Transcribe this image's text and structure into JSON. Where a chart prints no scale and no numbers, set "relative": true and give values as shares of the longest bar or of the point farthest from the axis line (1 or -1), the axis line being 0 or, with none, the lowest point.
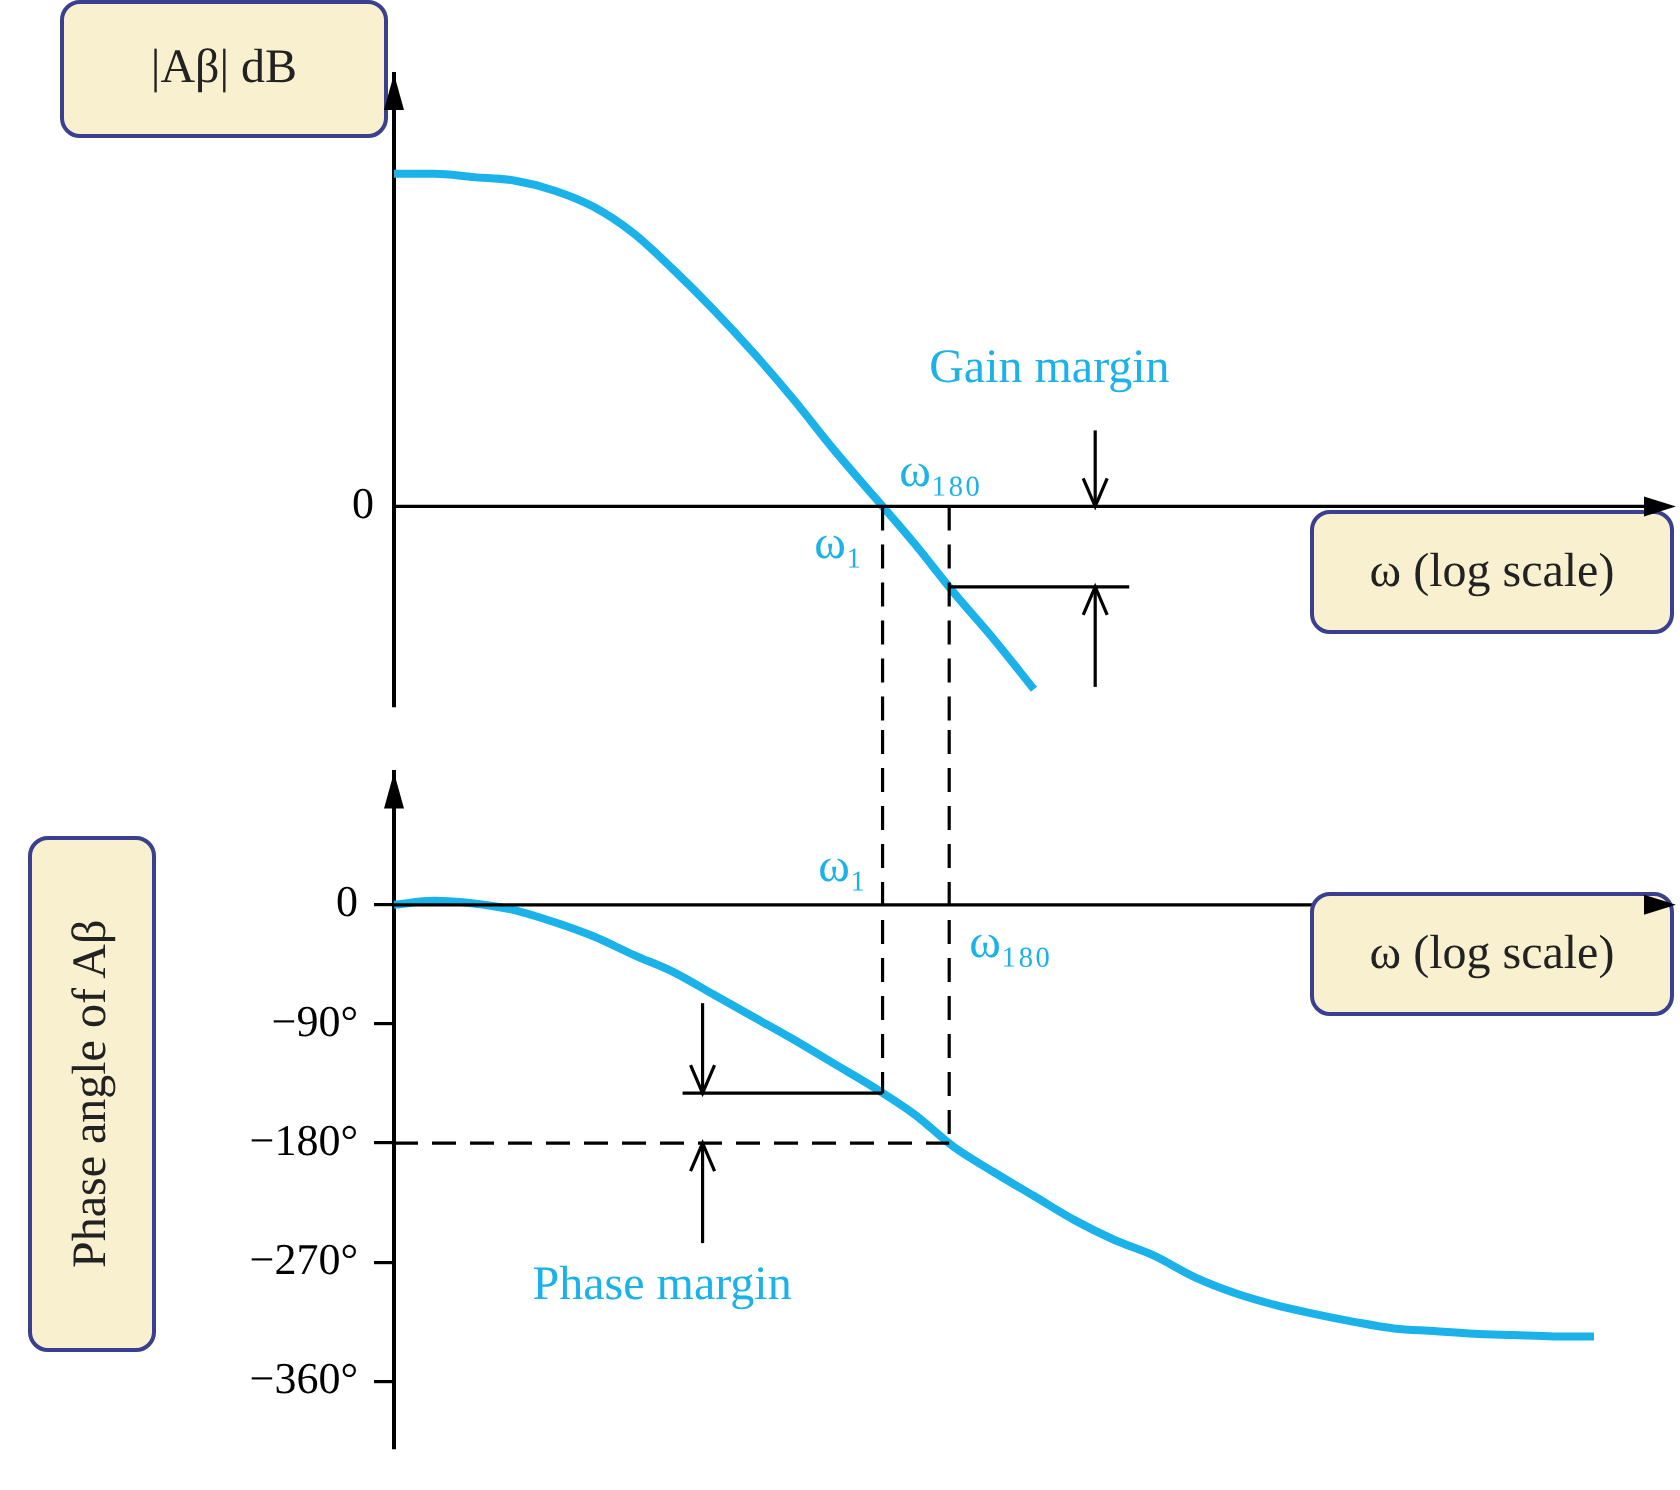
{
  "chart_data": [
    {
      "type": "line",
      "relative": true,
      "ylabel": "|Aβ|   dB",
      "xlabel": "ω (log scale)",
      "ref_lines": [
        {
          "axis": "y",
          "value": 0,
          "label": "0",
          "color": "#000000"
        }
      ],
      "categories": [
        null,
        null,
        null,
        null,
        null,
        null,
        null,
        null,
        null,
        null,
        null,
        null,
        null,
        null,
        null,
        null,
        null,
        null,
        null,
        null,
        null,
        null,
        null,
        null,
        null,
        null,
        null,
        null,
        null,
        null,
        null
      ],
      "series": [
        {
          "color": "#1ab2e8",
          "values": [
            1.0,
            1.0,
            0.99,
            0.98,
            0.95,
            0.9,
            0.82,
            0.71,
            0.59,
            0.46,
            0.32,
            0.17,
            0.03,
            -0.11,
            -0.26,
            -0.4,
            -0.55,
            null,
            null,
            null,
            null,
            null,
            null,
            null,
            null,
            null,
            null,
            null,
            null,
            null,
            null
          ]
        }
      ],
      "annotations": [
        "Gain margin",
        "ω₁₈₀",
        "ω₁"
      ]
    },
    {
      "type": "line",
      "ylabel": "Phase angle of Aβ",
      "xlabel": "ω (log scale)",
      "ylim": [
        -410,
        100
      ],
      "yticks": [
        0,
        {
          "value": -90,
          "label": "−90°"
        },
        {
          "value": -180,
          "label": "−180°"
        },
        {
          "value": -270,
          "label": "−270°"
        },
        {
          "value": -360,
          "label": "−360°"
        }
      ],
      "categories": [
        null,
        null,
        null,
        null,
        null,
        null,
        null,
        null,
        null,
        null,
        null,
        null,
        null,
        null,
        null,
        null,
        null,
        null,
        null,
        null,
        null,
        null,
        null,
        null,
        null,
        null,
        null,
        null,
        null,
        null,
        null
      ],
      "series": [
        {
          "color": "#1ab2e8",
          "values": [
            0,
            3,
            1,
            -4,
            -13,
            -24,
            -38,
            -51,
            -68,
            -85,
            -102,
            -120,
            -138,
            -158,
            -183,
            -202,
            -220,
            -238,
            -253,
            -265,
            -281,
            -293,
            -302,
            -309,
            -315,
            -320,
            -322,
            -324,
            -325,
            -326,
            -326
          ]
        }
      ],
      "ref_lines": [
        {
          "axis": "y",
          "value": -180,
          "line_style": "dashed",
          "color": "#000000"
        }
      ],
      "annotations": [
        "ω₁",
        "ω₁₈₀",
        "Phase margin"
      ]
    }
  ]
}
